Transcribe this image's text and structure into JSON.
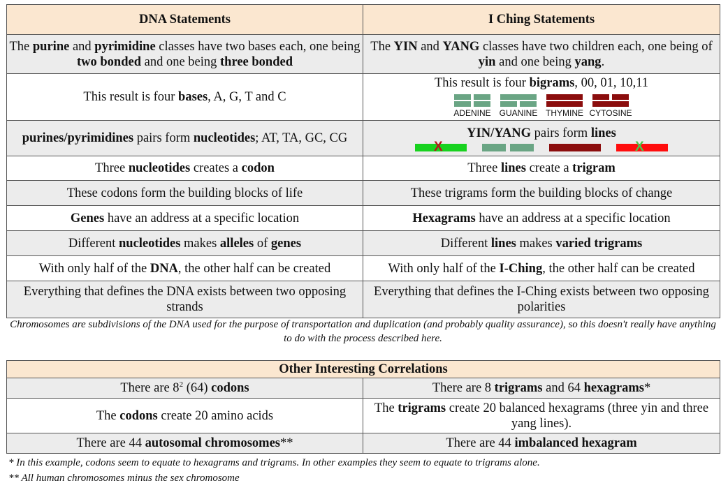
{
  "colors": {
    "header_bg": "#fbe7d0",
    "gray_row": "#ececec",
    "yang_green": "#6aa584",
    "yin_red": "#8b0d0d",
    "old_yang_green": "#18d21f",
    "old_yin_red": "#ff0d0d",
    "x_on_green": "#b8151c",
    "x_on_red": "#4cc64b"
  },
  "table1": {
    "header": {
      "left": "DNA Statements",
      "right": "I Ching Statements"
    },
    "rows": [
      {
        "left": [
          {
            "t": "The "
          },
          {
            "t": "purine",
            "b": true
          },
          {
            "t": " and "
          },
          {
            "t": "pyrimidine",
            "b": true
          },
          {
            "t": " classes have two bases each, one being "
          },
          {
            "t": "two bonded",
            "b": true
          },
          {
            "t": " and one being "
          },
          {
            "t": "three bonded",
            "b": true
          }
        ],
        "right": [
          {
            "t": "The "
          },
          {
            "t": "YIN",
            "b": true
          },
          {
            "t": " and "
          },
          {
            "t": "YANG",
            "b": true
          },
          {
            "t": " classes have two children each, one being of "
          },
          {
            "t": "yin",
            "b": true
          },
          {
            "t": " and one being "
          },
          {
            "t": "yang",
            "b": true
          },
          {
            "t": "."
          }
        ]
      },
      {
        "left": [
          {
            "t": "This result is four "
          },
          {
            "t": "bases",
            "b": true
          },
          {
            "t": ", A, G, T and C"
          }
        ],
        "right": [
          {
            "t": "This result is four "
          },
          {
            "t": "bigrams",
            "b": true
          },
          {
            "t": ", 00, 01, 10,11"
          }
        ]
      },
      {
        "left": [
          {
            "t": "purines/pyrimidines",
            "b": true
          },
          {
            "t": " pairs form "
          },
          {
            "t": "nucleotides",
            "b": true
          },
          {
            "t": "; AT, TA, GC, CG"
          }
        ],
        "right": [
          {
            "t": "YIN/YANG",
            "b": true
          },
          {
            "t": " pairs form "
          },
          {
            "t": "lines",
            "b": true
          }
        ]
      },
      {
        "left": [
          {
            "t": "Three "
          },
          {
            "t": "nucleotides",
            "b": true
          },
          {
            "t": " creates a "
          },
          {
            "t": "codon",
            "b": true
          }
        ],
        "right": [
          {
            "t": "Three "
          },
          {
            "t": "lines",
            "b": true
          },
          {
            "t": " create a "
          },
          {
            "t": "trigram",
            "b": true
          }
        ]
      },
      {
        "left": [
          {
            "t": "These codons form the building blocks of life"
          }
        ],
        "right": [
          {
            "t": "These trigrams form the building blocks of change"
          }
        ]
      },
      {
        "left": [
          {
            "t": "Genes",
            "b": true
          },
          {
            "t": " have an address at a specific location"
          }
        ],
        "right": [
          {
            "t": "Hexagrams",
            "b": true
          },
          {
            "t": " have an address at a specific location"
          }
        ]
      },
      {
        "left": [
          {
            "t": "Different "
          },
          {
            "t": "nucleotides",
            "b": true
          },
          {
            "t": " makes "
          },
          {
            "t": "alleles",
            "b": true
          },
          {
            "t": " of "
          },
          {
            "t": "genes",
            "b": true
          }
        ],
        "right": [
          {
            "t": "Different "
          },
          {
            "t": "lines",
            "b": true
          },
          {
            "t": " makes "
          },
          {
            "t": "varied trigrams",
            "b": true
          }
        ]
      },
      {
        "left": [
          {
            "t": "With only half of the "
          },
          {
            "t": "DNA",
            "b": true
          },
          {
            "t": ", the other half can be created"
          }
        ],
        "right": [
          {
            "t": "With only half of the "
          },
          {
            "t": "I-Ching",
            "b": true
          },
          {
            "t": ", the other half can be created"
          }
        ]
      },
      {
        "left": [
          {
            "t": "Everything that defines the DNA exists between two opposing strands"
          }
        ],
        "right": [
          {
            "t": "Everything that defines the I-Ching exists between two opposing polarities"
          }
        ]
      }
    ],
    "bigrams": [
      {
        "label": "ADENINE",
        "lines": [
          "yin",
          "yin"
        ],
        "color": "green"
      },
      {
        "label": "GUANINE",
        "lines": [
          "yang",
          "yin"
        ],
        "color": "green"
      },
      {
        "label": "THYMINE",
        "lines": [
          "yang",
          "yang"
        ],
        "color": "red"
      },
      {
        "label": "CYTOSINE",
        "lines": [
          "yin",
          "yang"
        ],
        "color": "red"
      }
    ],
    "line_types": [
      {
        "kind": "old-yang",
        "mark": "X"
      },
      {
        "kind": "young-yin",
        "mark": ""
      },
      {
        "kind": "young-yang",
        "mark": ""
      },
      {
        "kind": "old-yin",
        "mark": "X"
      }
    ]
  },
  "note1": "Chromosomes are subdivisions of the DNA used for the purpose of transportation and duplication (and probably quality assurance), so this doesn't really have anything to do with the process described here.",
  "table2": {
    "header": "Other Interesting Correlations",
    "rows": [
      {
        "left": [
          {
            "t": "There are 8"
          },
          {
            "t": "2",
            "sup": true
          },
          {
            "t": " (64) "
          },
          {
            "t": "codons",
            "b": true
          }
        ],
        "right": [
          {
            "t": "There are 8 "
          },
          {
            "t": "trigrams",
            "b": true
          },
          {
            "t": " and 64 "
          },
          {
            "t": "hexagrams",
            "b": true
          },
          {
            "t": "*"
          }
        ]
      },
      {
        "left": [
          {
            "t": "The "
          },
          {
            "t": "codons",
            "b": true
          },
          {
            "t": " create 20 amino acids"
          }
        ],
        "right": [
          {
            "t": "The "
          },
          {
            "t": "trigrams",
            "b": true
          },
          {
            "t": " create 20 balanced hexagrams (three yin and three yang lines)."
          }
        ]
      },
      {
        "left": [
          {
            "t": "There are 44 "
          },
          {
            "t": "autosomal chromosomes",
            "b": true
          },
          {
            "t": "**"
          }
        ],
        "right": [
          {
            "t": "There are 44 "
          },
          {
            "t": "imbalanced hexagram",
            "b": true
          }
        ]
      }
    ]
  },
  "note2": "* In this example, codons seem to equate to hexagrams and trigrams. In other examples they seem to equate to trigrams alone.",
  "note3": "** All human chromosomes minus the sex chromosome"
}
